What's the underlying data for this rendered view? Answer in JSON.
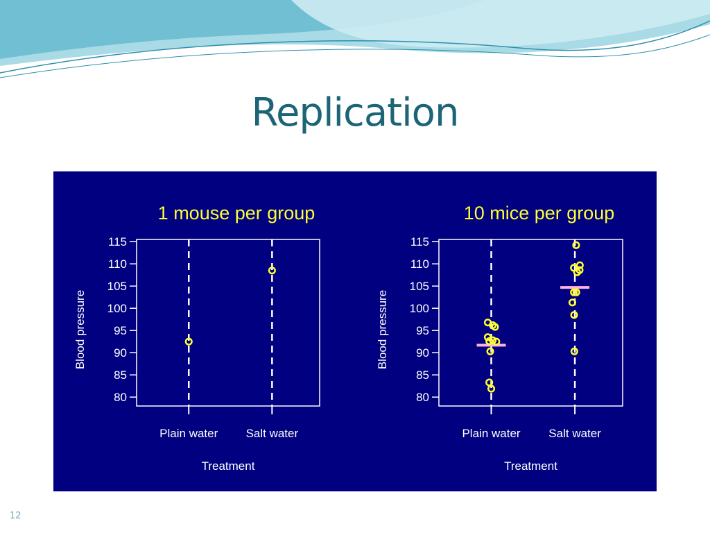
{
  "slide": {
    "title": "Replication",
    "number": "12"
  },
  "colors": {
    "panel_background": "#000080",
    "points": "#ffff33",
    "mean_line": "#ffb3d9",
    "axes": "#ffffff",
    "title_text": "#1b6577"
  },
  "chart_data": [
    {
      "type": "scatter",
      "title": "1 mouse per group",
      "xlabel": "Treatment",
      "ylabel": "Blood pressure",
      "categories": [
        "Plain water",
        "Salt water"
      ],
      "yticks": [
        80,
        85,
        90,
        95,
        100,
        105,
        110,
        115
      ],
      "ylim": [
        78,
        115.5
      ],
      "grid": false,
      "points": [
        {
          "group": "Plain water",
          "y": 92.5
        },
        {
          "group": "Salt water",
          "y": 108.5
        }
      ],
      "means": []
    },
    {
      "type": "scatter",
      "title": "10 mice per group",
      "xlabel": "Treatment",
      "ylabel": "Blood pressure",
      "categories": [
        "Plain water",
        "Salt water"
      ],
      "yticks": [
        80,
        85,
        90,
        95,
        100,
        105,
        110,
        115
      ],
      "ylim": [
        78,
        115.5
      ],
      "grid": false,
      "points": [
        {
          "group": "Plain water",
          "y": 96.8,
          "jitter": -0.14
        },
        {
          "group": "Plain water",
          "y": 96.2,
          "jitter": 0.06
        },
        {
          "group": "Plain water",
          "y": 95.8,
          "jitter": 0.15
        },
        {
          "group": "Plain water",
          "y": 93.5,
          "jitter": -0.14
        },
        {
          "group": "Plain water",
          "y": 92.8,
          "jitter": 0.06
        },
        {
          "group": "Plain water",
          "y": 92.6,
          "jitter": -0.08
        },
        {
          "group": "Plain water",
          "y": 92.5,
          "jitter": 0.2
        },
        {
          "group": "Plain water",
          "y": 90.3,
          "jitter": -0.04
        },
        {
          "group": "Plain water",
          "y": 83.3,
          "jitter": -0.08
        },
        {
          "group": "Plain water",
          "y": 81.9,
          "jitter": 0.0
        },
        {
          "group": "Salt water",
          "y": 114.2,
          "jitter": 0.05
        },
        {
          "group": "Salt water",
          "y": 109.7,
          "jitter": 0.2
        },
        {
          "group": "Salt water",
          "y": 109.1,
          "jitter": -0.04
        },
        {
          "group": "Salt water",
          "y": 108.6,
          "jitter": 0.19
        },
        {
          "group": "Salt water",
          "y": 108.1,
          "jitter": 0.09
        },
        {
          "group": "Salt water",
          "y": 103.6,
          "jitter": -0.04
        },
        {
          "group": "Salt water",
          "y": 103.6,
          "jitter": 0.06
        },
        {
          "group": "Salt water",
          "y": 101.3,
          "jitter": -0.1
        },
        {
          "group": "Salt water",
          "y": 98.5,
          "jitter": -0.03
        },
        {
          "group": "Salt water",
          "y": 90.3,
          "jitter": -0.02
        }
      ],
      "means": [
        {
          "group": "Plain water",
          "y": 91.7
        },
        {
          "group": "Salt water",
          "y": 104.7
        }
      ]
    }
  ]
}
